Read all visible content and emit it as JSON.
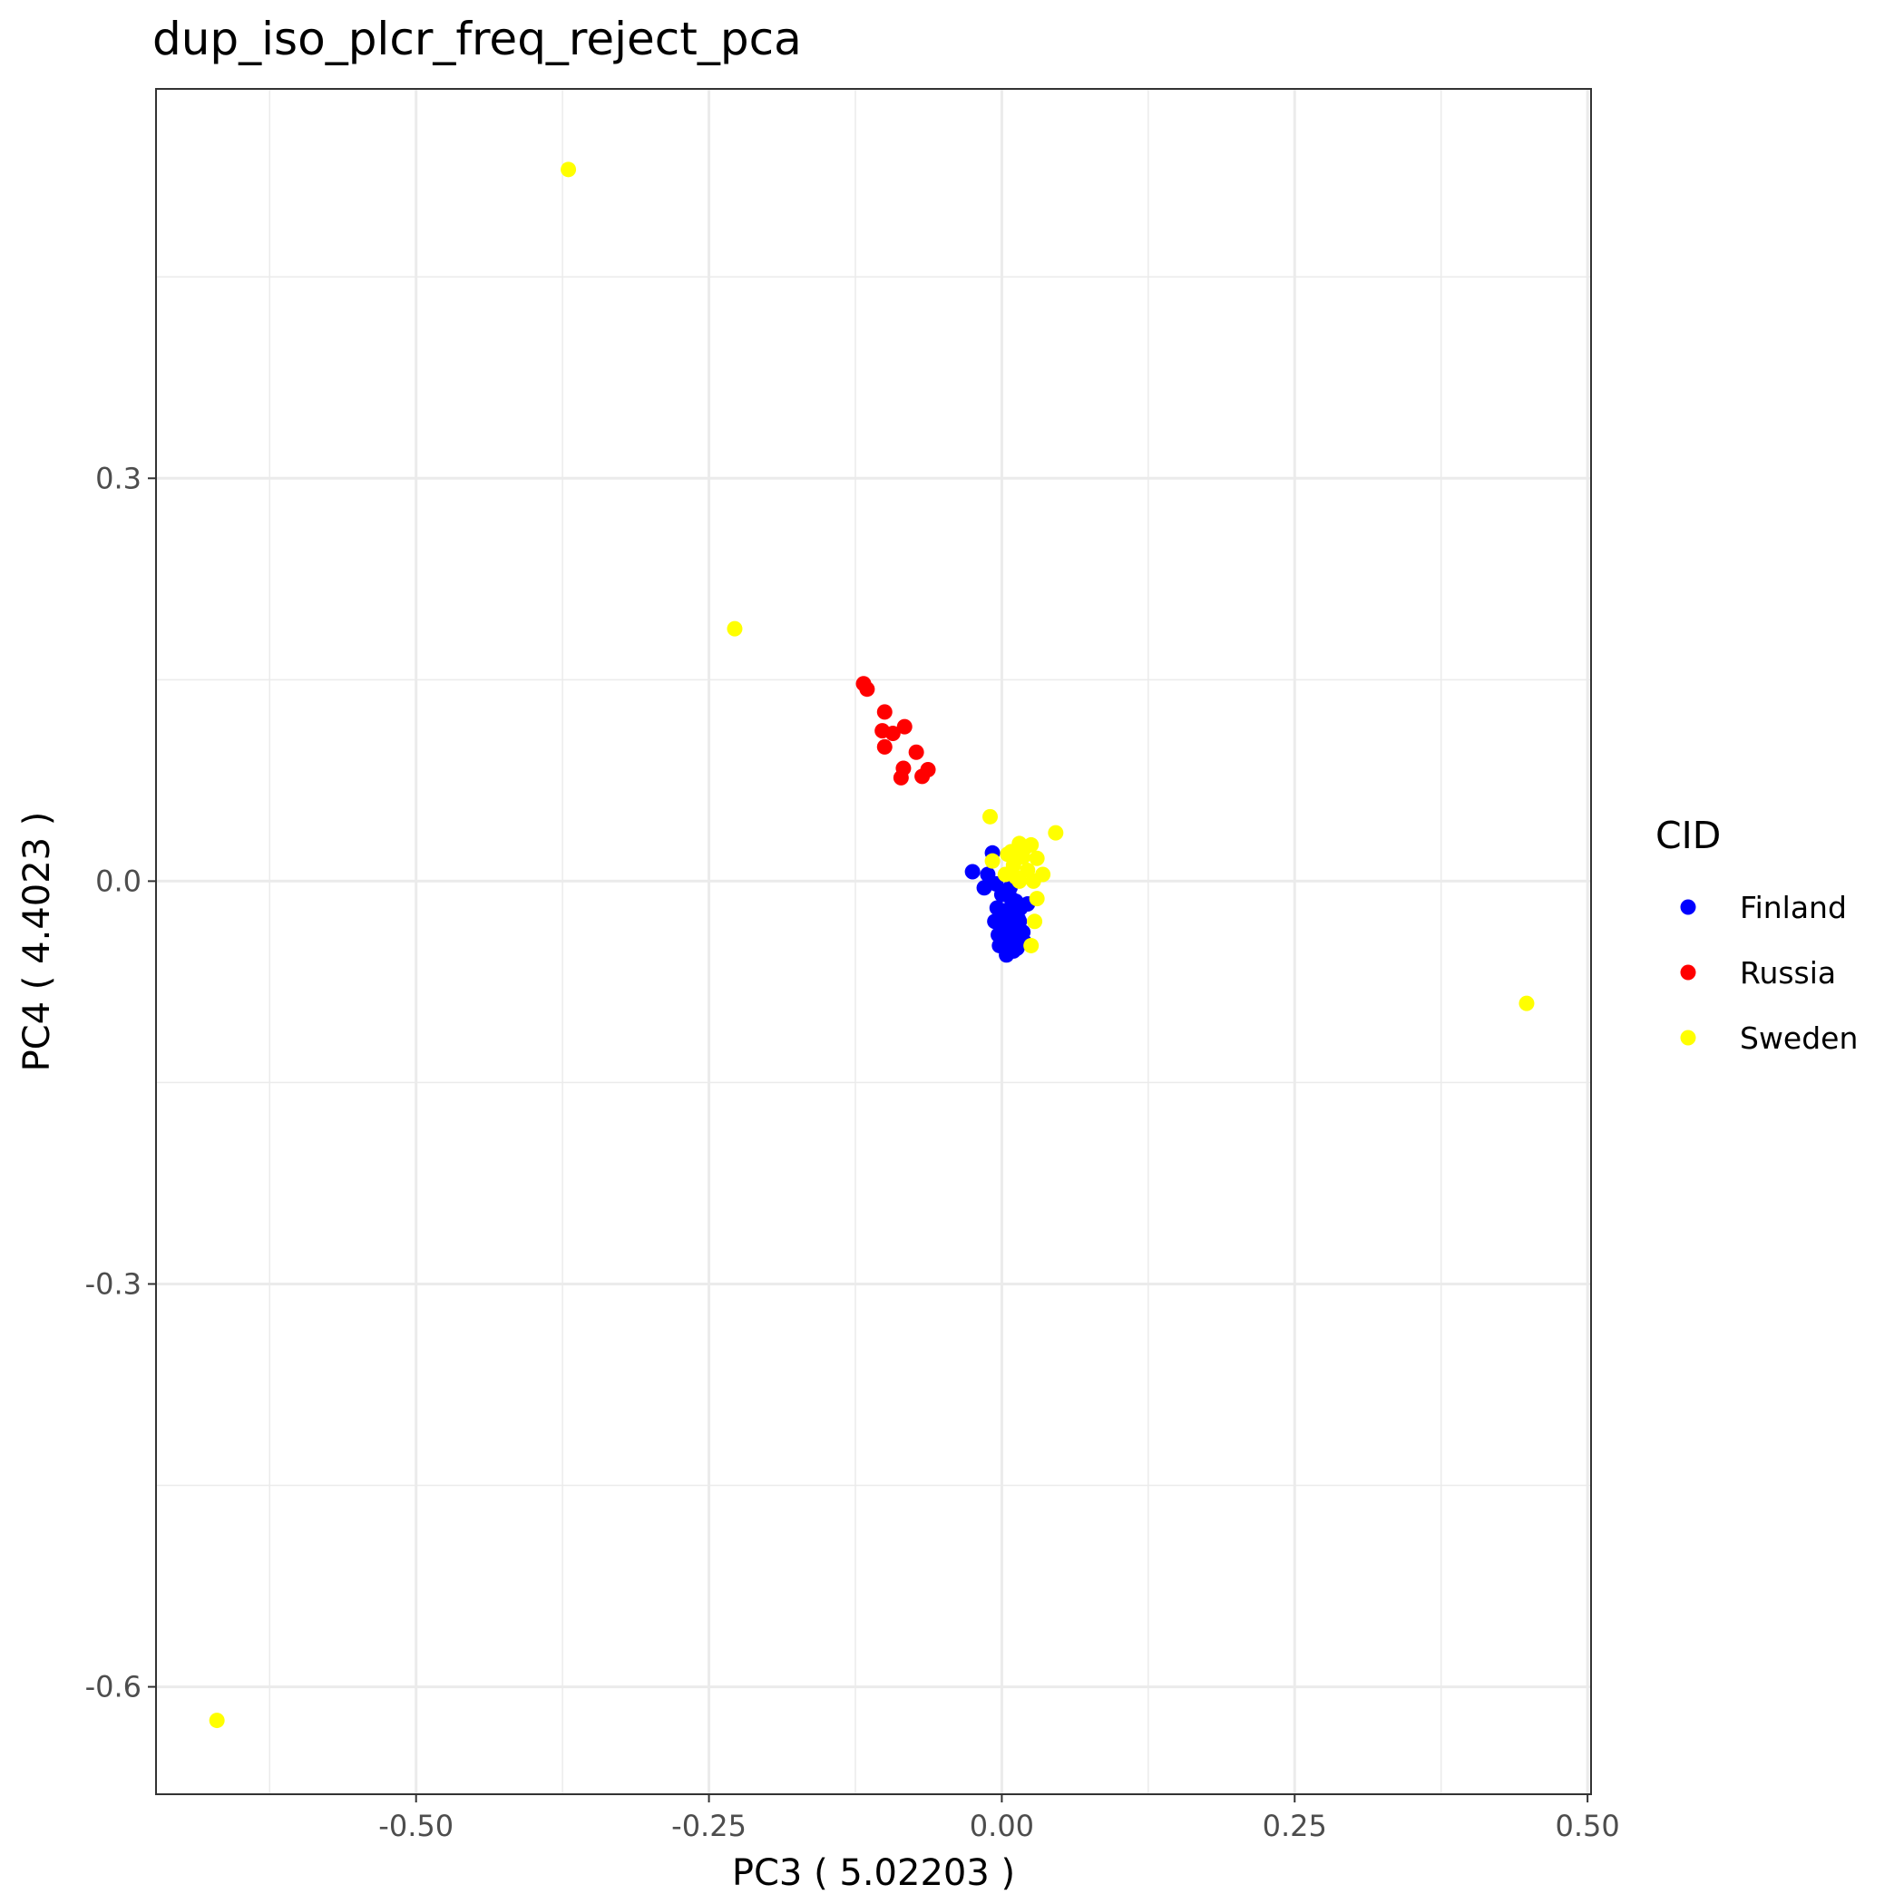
{
  "chart_data": {
    "type": "scatter",
    "title": "dup_iso_plcr_freq_reject_pca",
    "xlabel": "PC3 ( 5.02203 )",
    "ylabel": "PC4 ( 4.4023 )",
    "xlim": [
      -0.722,
      0.503
    ],
    "ylim": [
      -0.68,
      0.59
    ],
    "x_ticks": [
      -0.5,
      -0.25,
      0.0,
      0.25,
      0.5
    ],
    "x_tick_labels": [
      "-0.50",
      "-0.25",
      "0.00",
      "0.25",
      "0.50"
    ],
    "y_ticks": [
      -0.6,
      -0.3,
      0.0,
      0.3
    ],
    "y_tick_labels": [
      "-0.6",
      "-0.3",
      "0.0",
      "0.3"
    ],
    "grid": true,
    "legend": {
      "title": "CID",
      "position": "right"
    },
    "series": [
      {
        "name": "Finland",
        "color": "#0000ff",
        "points": [
          [
            -0.025,
            0.007
          ],
          [
            -0.008,
            0.021
          ],
          [
            -0.012,
            0.005
          ],
          [
            -0.015,
            -0.005
          ],
          [
            -0.005,
            -0.002
          ],
          [
            0.0,
            -0.01
          ],
          [
            0.008,
            -0.013
          ],
          [
            0.012,
            -0.015
          ],
          [
            -0.004,
            -0.02
          ],
          [
            0.003,
            -0.022
          ],
          [
            0.01,
            -0.024
          ],
          [
            0.016,
            -0.02
          ],
          [
            -0.006,
            -0.03
          ],
          [
            0.002,
            -0.033
          ],
          [
            0.008,
            -0.032
          ],
          [
            0.015,
            -0.03
          ],
          [
            0.022,
            -0.017
          ],
          [
            -0.003,
            -0.04
          ],
          [
            0.005,
            -0.042
          ],
          [
            0.012,
            -0.04
          ],
          [
            0.018,
            -0.038
          ],
          [
            -0.002,
            -0.048
          ],
          [
            0.006,
            -0.05
          ],
          [
            0.013,
            -0.05
          ],
          [
            0.019,
            -0.045
          ],
          [
            0.004,
            -0.055
          ],
          [
            0.01,
            -0.052
          ],
          [
            0.0,
            -0.025
          ],
          [
            0.007,
            -0.005
          ],
          [
            0.014,
            -0.028
          ]
        ]
      },
      {
        "name": "Russia",
        "color": "#ff0000",
        "points": [
          [
            -0.118,
            0.147
          ],
          [
            -0.115,
            0.143
          ],
          [
            -0.1,
            0.126
          ],
          [
            -0.083,
            0.115
          ],
          [
            -0.102,
            0.112
          ],
          [
            -0.093,
            0.11
          ],
          [
            -0.1,
            0.1
          ],
          [
            -0.073,
            0.096
          ],
          [
            -0.084,
            0.084
          ],
          [
            -0.063,
            0.083
          ],
          [
            -0.086,
            0.077
          ],
          [
            -0.068,
            0.078
          ]
        ]
      },
      {
        "name": "Sweden",
        "color": "#ffff00",
        "points": [
          [
            -0.37,
            0.53
          ],
          [
            -0.228,
            0.188
          ],
          [
            0.448,
            -0.091
          ],
          [
            -0.67,
            -0.625
          ],
          [
            -0.01,
            0.048
          ],
          [
            0.046,
            0.036
          ],
          [
            0.015,
            0.028
          ],
          [
            0.025,
            0.027
          ],
          [
            0.005,
            0.02
          ],
          [
            0.018,
            0.018
          ],
          [
            0.03,
            0.017
          ],
          [
            -0.008,
            0.015
          ],
          [
            0.01,
            0.012
          ],
          [
            0.022,
            0.008
          ],
          [
            0.035,
            0.005
          ],
          [
            0.003,
            0.005
          ],
          [
            0.015,
            0.0
          ],
          [
            0.027,
            0.0
          ],
          [
            0.03,
            -0.013
          ],
          [
            0.028,
            -0.03
          ],
          [
            0.025,
            -0.048
          ],
          [
            0.02,
            0.025
          ],
          [
            0.008,
            0.022
          ],
          [
            0.012,
            0.003
          ]
        ]
      }
    ]
  }
}
